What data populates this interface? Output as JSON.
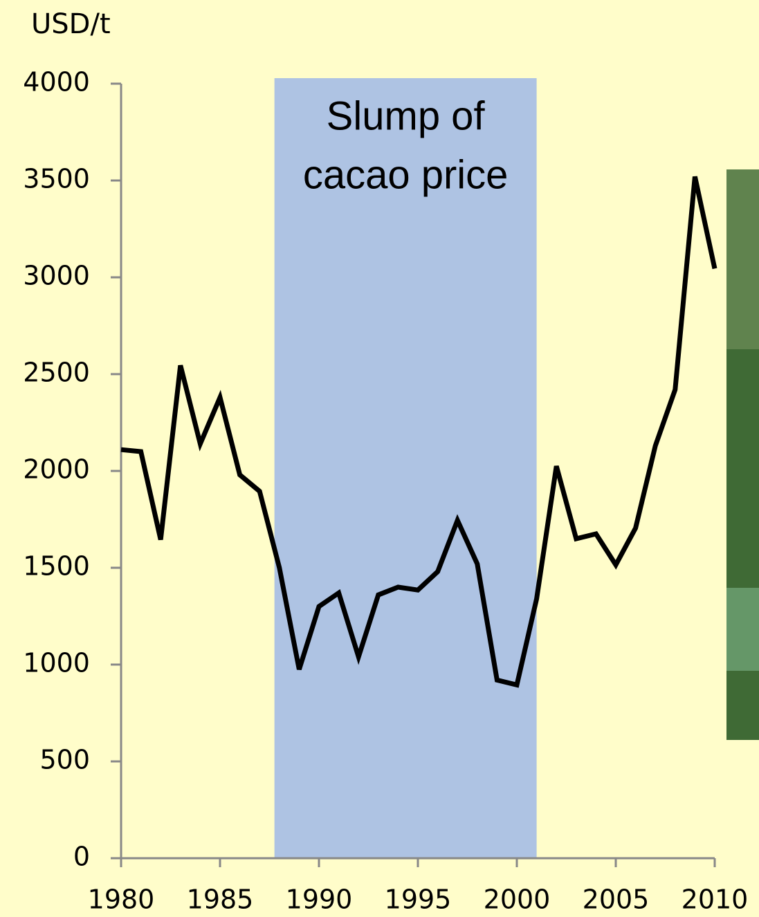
{
  "chart_data": {
    "type": "line",
    "y_label": "USD/t",
    "x": [
      1980,
      1981,
      1982,
      1983,
      1984,
      1985,
      1986,
      1987,
      1988,
      1989,
      1990,
      1991,
      1992,
      1993,
      1994,
      1995,
      1996,
      1997,
      1998,
      1999,
      2000,
      2001,
      2002,
      2003,
      2004,
      2005,
      2006,
      2007,
      2008,
      2009,
      2010
    ],
    "series": [
      {
        "color": "#000000",
        "values": [
          2110,
          2100,
          1645,
          2545,
          2140,
          2380,
          1980,
          1895,
          1500,
          975,
          1300,
          1370,
          1040,
          1360,
          1400,
          1385,
          1480,
          1745,
          1520,
          920,
          895,
          1340,
          2025,
          1650,
          1675,
          1515,
          1705,
          2130,
          2420,
          3520,
          3045
        ]
      }
    ],
    "xlim": [
      1980,
      2010
    ],
    "xticks": [
      1980,
      1985,
      1990,
      1995,
      2000,
      2005,
      2010
    ],
    "ylim": [
      0,
      4000
    ],
    "yticks": [
      0,
      500,
      1000,
      1500,
      2000,
      2500,
      3000,
      3500,
      4000
    ],
    "highlight": {
      "start": 1987.75,
      "end": 2001,
      "color": "#aec3e3",
      "label_lines": [
        "Slump of",
        "cacao price"
      ]
    }
  }
}
